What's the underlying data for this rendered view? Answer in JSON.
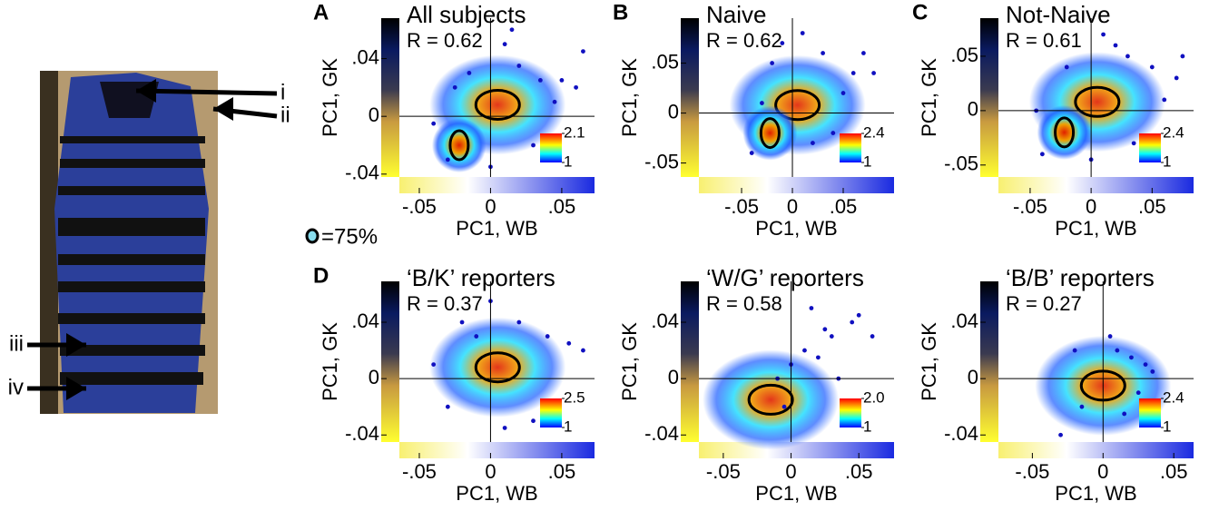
{
  "figure": {
    "arrow_labels": [
      "i",
      "ii",
      "iii",
      "iv"
    ],
    "contour_legend": "=75%"
  },
  "chart_data": [
    {
      "type": "scatter",
      "panel_label": "A",
      "title": "All subjects",
      "annotation": "R = 0.62",
      "xlabel": "PC1, WB",
      "ylabel": "PC1, GK",
      "xlim": [
        -0.064,
        0.073
      ],
      "ylim": [
        -0.042,
        0.068
      ],
      "xticks": [
        {
          "value": -0.05,
          "label": "-.05"
        },
        0,
        {
          "value": 0.05,
          "label": ".05"
        }
      ],
      "yticks": [
        {
          "value": -0.04,
          "label": "-.04"
        },
        0,
        {
          "value": 0.04,
          "label": ".04"
        }
      ],
      "colorbar_ticks": [
        1,
        2.1
      ],
      "x": [
        -0.03,
        -0.015,
        0.02,
        0.035,
        0.05,
        0.065,
        0.01,
        -0.04,
        0.03,
        0.045,
        0.0,
        0.06,
        -0.025,
        0.015
      ],
      "y": [
        -0.03,
        0.03,
        0.035,
        0.025,
        0.025,
        0.045,
        0.05,
        -0.005,
        -0.02,
        0.01,
        -0.035,
        0.02,
        0.02,
        0.06
      ]
    },
    {
      "type": "scatter",
      "panel_label": "B",
      "title": "Naive",
      "annotation": "R = 0.62",
      "xlabel": "PC1, WB",
      "ylabel": "PC1, GK",
      "xlim": [
        -0.092,
        0.1
      ],
      "ylim": [
        -0.064,
        0.095
      ],
      "xticks": [
        {
          "value": -0.05,
          "label": "-.05"
        },
        0,
        {
          "value": 0.05,
          "label": ".05"
        }
      ],
      "yticks": [
        {
          "value": -0.05,
          "label": "-.05"
        },
        0,
        {
          "value": 0.05,
          "label": ".05"
        }
      ],
      "colorbar_ticks": [
        1,
        2.4
      ],
      "x": [
        -0.04,
        -0.02,
        0.03,
        0.06,
        0.08,
        0.05,
        0.01,
        -0.03,
        0.04,
        0.07,
        0.02,
        -0.01
      ],
      "y": [
        -0.04,
        0.05,
        0.06,
        0.04,
        0.04,
        0.02,
        0.08,
        0.01,
        -0.02,
        0.06,
        -0.03,
        0.07
      ]
    },
    {
      "type": "scatter",
      "panel_label": "C",
      "title": "Not-Naive",
      "annotation": "R = 0.61",
      "xlabel": "PC1, WB",
      "ylabel": "PC1, GK",
      "xlim": [
        -0.076,
        0.084
      ],
      "ylim": [
        -0.061,
        0.085
      ],
      "xticks": [
        {
          "value": -0.05,
          "label": "-.05"
        },
        0,
        {
          "value": 0.05,
          "label": ".05"
        }
      ],
      "yticks": [
        {
          "value": -0.05,
          "label": "-.05"
        },
        0,
        {
          "value": 0.05,
          "label": ".05"
        }
      ],
      "colorbar_ticks": [
        1,
        2.4
      ],
      "x": [
        -0.04,
        -0.02,
        0.03,
        0.05,
        0.07,
        0.06,
        0.01,
        -0.045,
        0.035,
        0.02,
        0.0,
        0.075
      ],
      "y": [
        -0.04,
        0.04,
        0.05,
        0.04,
        0.03,
        0.01,
        0.07,
        0.0,
        -0.03,
        0.06,
        -0.045,
        0.05
      ]
    },
    {
      "type": "scatter",
      "panel_label": "D",
      "title": "‘B/K’ reporters",
      "annotation": "R = 0.37",
      "xlabel": "PC1, WB",
      "ylabel": "PC1, GK",
      "xlim": [
        -0.064,
        0.073
      ],
      "ylim": [
        -0.045,
        0.069
      ],
      "xticks": [
        {
          "value": -0.05,
          "label": "-.05"
        },
        0,
        {
          "value": 0.05,
          "label": ".05"
        }
      ],
      "yticks": [
        {
          "value": -0.04,
          "label": "-.04"
        },
        0,
        {
          "value": 0.04,
          "label": ".04"
        }
      ],
      "colorbar_ticks": [
        1,
        2.5
      ],
      "x": [
        -0.03,
        -0.01,
        0.02,
        0.04,
        0.055,
        0.065,
        0.0,
        -0.04,
        0.03,
        0.045,
        0.01,
        -0.02
      ],
      "y": [
        -0.02,
        0.03,
        0.04,
        0.03,
        0.025,
        0.02,
        0.055,
        0.01,
        -0.03,
        -0.02,
        -0.035,
        0.04
      ]
    },
    {
      "type": "scatter",
      "title": "‘W/G’ reporters",
      "annotation": "R = 0.58",
      "xlabel": "PC1, WB",
      "ylabel": "PC1, GK",
      "xlim": [
        -0.068,
        0.076
      ],
      "ylim": [
        -0.045,
        0.069
      ],
      "xticks": [
        {
          "value": -0.05,
          "label": "-.05"
        },
        0,
        {
          "value": 0.05,
          "label": ".05"
        }
      ],
      "yticks": [
        {
          "value": -0.04,
          "label": "-.04"
        },
        0,
        {
          "value": 0.04,
          "label": ".04"
        }
      ],
      "colorbar_ticks": [
        1,
        {
          "value": 2,
          "label": "2.0"
        }
      ],
      "x": [
        -0.01,
        0.0,
        0.01,
        0.02,
        0.03,
        0.045,
        0.05,
        -0.005,
        0.015,
        0.06,
        0.035,
        0.025
      ],
      "y": [
        0.0,
        0.01,
        0.02,
        0.015,
        0.03,
        0.04,
        0.045,
        -0.02,
        0.05,
        0.03,
        0.0,
        0.035
      ]
    },
    {
      "type": "scatter",
      "title": "‘B/B’ reporters",
      "annotation": "R = 0.27",
      "xlabel": "PC1, WB",
      "ylabel": "PC1, GK",
      "xlim": [
        -0.074,
        0.064
      ],
      "ylim": [
        -0.045,
        0.069
      ],
      "xticks": [
        {
          "value": -0.05,
          "label": "-.05"
        },
        0,
        {
          "value": 0.05,
          "label": ".05"
        }
      ],
      "yticks": [
        {
          "value": -0.04,
          "label": "-.04"
        },
        0,
        {
          "value": 0.04,
          "label": ".04"
        }
      ],
      "colorbar_ticks": [
        1,
        2.4
      ],
      "x": [
        -0.02,
        0.01,
        0.02,
        0.03,
        -0.015,
        0.025,
        0.005,
        -0.03,
        0.035,
        0.015
      ],
      "y": [
        0.02,
        0.02,
        0.015,
        0.01,
        -0.02,
        -0.01,
        0.03,
        -0.04,
        0.005,
        -0.025
      ]
    }
  ]
}
